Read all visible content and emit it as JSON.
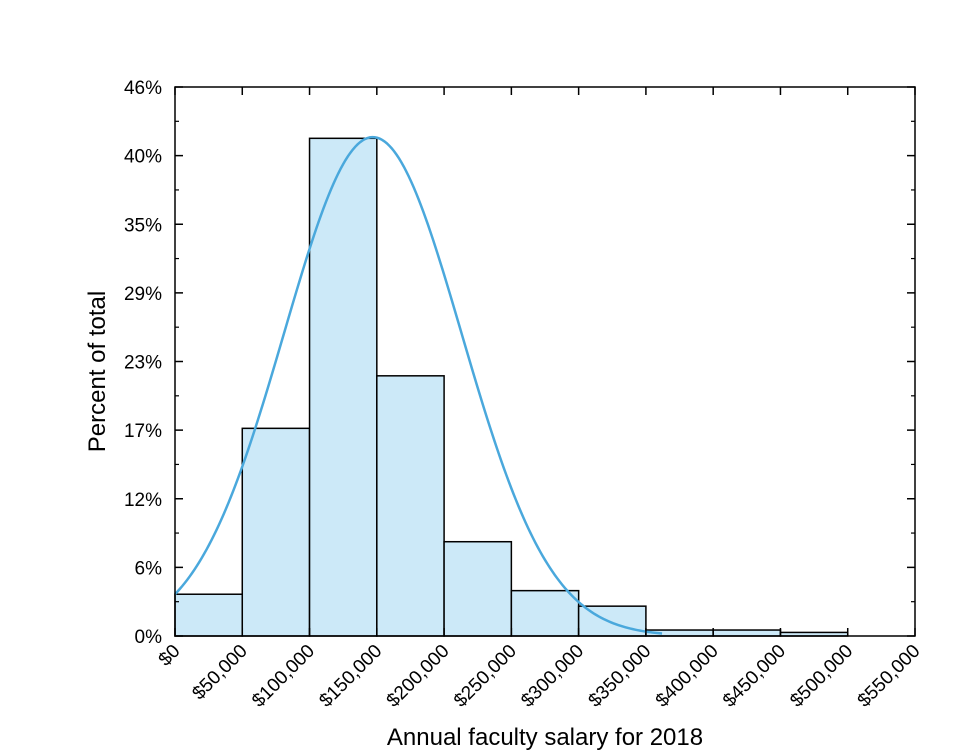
{
  "chart_data": {
    "type": "bar",
    "title": "",
    "xlabel": "Annual faculty salary for 2018",
    "ylabel": "Percent of total",
    "x_ticks": [
      "$0",
      "$50,000",
      "$100,000",
      "$150,000",
      "$200,000",
      "$250,000",
      "$300,000",
      "$350,000",
      "$400,000",
      "$450,000",
      "$500,000",
      "$550,000"
    ],
    "x_tick_values": [
      0,
      50000,
      100000,
      150000,
      200000,
      250000,
      300000,
      350000,
      400000,
      450000,
      500000,
      550000
    ],
    "y_ticks": [
      "0%",
      "6%",
      "12%",
      "17%",
      "23%",
      "29%",
      "35%",
      "40%",
      "46%"
    ],
    "y_tick_values": [
      0,
      5.75,
      11.5,
      17.25,
      23,
      28.75,
      34.5,
      40.25,
      46
    ],
    "xlim": [
      0,
      550000
    ],
    "ylim": [
      0,
      46
    ],
    "bins": [
      {
        "start": 0,
        "end": 50000,
        "value": 3.5
      },
      {
        "start": 50000,
        "end": 100000,
        "value": 17.4
      },
      {
        "start": 100000,
        "end": 150000,
        "value": 41.7
      },
      {
        "start": 150000,
        "end": 200000,
        "value": 21.8
      },
      {
        "start": 200000,
        "end": 250000,
        "value": 7.9
      },
      {
        "start": 250000,
        "end": 300000,
        "value": 3.8
      },
      {
        "start": 300000,
        "end": 350000,
        "value": 2.5
      },
      {
        "start": 350000,
        "end": 400000,
        "value": 0.5
      },
      {
        "start": 400000,
        "end": 450000,
        "value": 0.5
      },
      {
        "start": 450000,
        "end": 500000,
        "value": 0.3
      }
    ],
    "fit_curve": {
      "type": "normal",
      "mean": 147000,
      "sd": 66000,
      "peak": 41.8,
      "x_range": [
        0,
        362000
      ]
    },
    "bar_fill": "#cce9f8",
    "bar_edge": "#000000",
    "curve_color": "#4aa8dc",
    "grid": false,
    "legend": "none"
  }
}
